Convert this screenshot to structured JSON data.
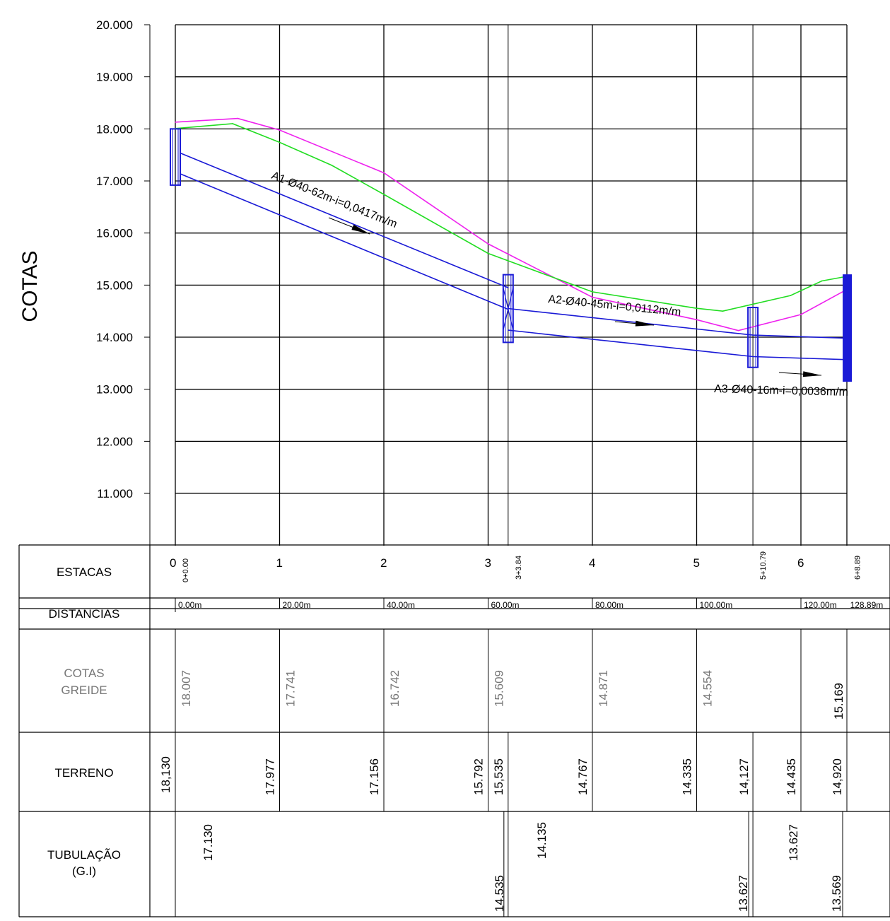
{
  "y_axis": {
    "label": "COTAS",
    "ticks": [
      "20.000",
      "19.000",
      "18.000",
      "17.000",
      "16.000",
      "15.000",
      "14.000",
      "13.000",
      "12.000",
      "11.000"
    ]
  },
  "stations": [
    "0",
    "1",
    "2",
    "3",
    "4",
    "5",
    "6"
  ],
  "special_stations": [
    "0+0.00",
    "3+3.84",
    "5+10.79",
    "6+8.89"
  ],
  "pipe_labels": [
    "A1-Ø40-62m-i=0,0417m/m",
    "A2-Ø40-45m-i=0,0112m/m",
    "A3-Ø40-16m-i=0,0036m/m"
  ],
  "table": {
    "row_labels": {
      "estacas": "ESTACAS",
      "distancias": "DISTANCIAS",
      "cotas_greide_1": "COTAS",
      "cotas_greide_2": "GREIDE",
      "terreno": "TERRENO",
      "tubulacao_1": "TUBULAÇÃO",
      "tubulacao_2": "(G.I)"
    },
    "distancias": [
      "0.00m",
      "20.00m",
      "40.00m",
      "60.00m",
      "80.00m",
      "100.00m",
      "120.00m",
      "128.89m"
    ],
    "cotas_greide": [
      "18.007",
      "17.741",
      "16.742",
      "15.609",
      "14.871",
      "14.554",
      "15.169"
    ],
    "terreno": [
      "18,130",
      "17.977",
      "17.156",
      "15.792",
      "15,535",
      "14.767",
      "14.335",
      "14,127",
      "14.435",
      "14,920"
    ],
    "tubulacao": [
      "17.130",
      "14.535",
      "14.135",
      "13.627",
      "13.627",
      "13.569"
    ]
  },
  "colors": {
    "pipe": "#1a1ad6",
    "grade": "#22dd22",
    "terrain": "#ee22ee",
    "grid": "#000000",
    "gray_text": "#777777"
  },
  "chart_data": {
    "type": "line",
    "title": "",
    "xlabel": "",
    "ylabel": "COTAS",
    "ylim": [
      10.0,
      20.0
    ],
    "x_unit": "m",
    "series": [
      {
        "x": [
          0,
          12,
          20,
          40,
          60,
          80,
          100,
          108,
          120,
          128.89
        ],
        "values": [
          18.13,
          18.2,
          17.977,
          17.156,
          15.792,
          14.767,
          14.335,
          14.127,
          14.435,
          14.92
        ]
      },
      {
        "x": [
          0,
          11,
          20,
          30,
          40,
          60,
          80,
          100,
          105,
          118,
          124,
          128.89
        ],
        "values": [
          18.007,
          18.1,
          17.741,
          17.3,
          16.742,
          15.609,
          14.871,
          14.554,
          14.5,
          14.8,
          15.08,
          15.169
        ]
      },
      {
        "x": [
          1.1,
          63.84
        ],
        "values": [
          17.53,
          14.95
        ]
      },
      {
        "x": [
          1.1,
          63.84
        ],
        "values": [
          17.13,
          14.535
        ]
      },
      {
        "x": [
          63.84,
          110.79,
          128.89
        ],
        "values": [
          14.55,
          14.04,
          13.98
        ]
      },
      {
        "x": [
          63.84,
          110.79,
          128.89
        ],
        "values": [
          14.135,
          13.627,
          13.569
        ]
      }
    ]
  }
}
